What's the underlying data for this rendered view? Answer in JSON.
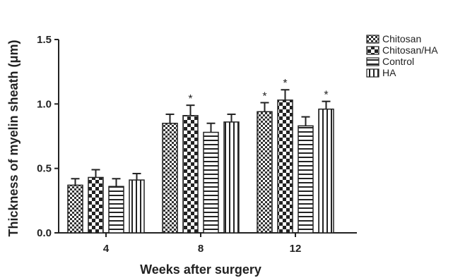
{
  "chart_data": {
    "type": "bar",
    "title": "",
    "xlabel": "Weeks after surgery",
    "ylabel": "Thickness of myelin sheath (μm)",
    "ylim": [
      0,
      1.5
    ],
    "yticks": [
      "0.0",
      "0.5",
      "1.0",
      "1.5"
    ],
    "categories": [
      "4",
      "8",
      "12"
    ],
    "series": [
      {
        "name": "Chitosan",
        "pattern": "checker",
        "values": [
          0.37,
          0.85,
          0.94
        ],
        "errors": [
          0.05,
          0.07,
          0.07
        ],
        "marks": [
          "",
          "",
          "*"
        ]
      },
      {
        "name": "Chitosan/HA",
        "pattern": "big-checker",
        "values": [
          0.43,
          0.91,
          1.03
        ],
        "errors": [
          0.06,
          0.08,
          0.08
        ],
        "marks": [
          "",
          "*",
          "*"
        ]
      },
      {
        "name": "Control",
        "pattern": "horizontal",
        "values": [
          0.36,
          0.78,
          0.83
        ],
        "errors": [
          0.06,
          0.07,
          0.07
        ],
        "marks": [
          "",
          "",
          ""
        ]
      },
      {
        "name": "HA",
        "pattern": "vertical",
        "values": [
          0.41,
          0.86,
          0.96
        ],
        "errors": [
          0.05,
          0.06,
          0.06
        ],
        "marks": [
          "",
          "",
          "*"
        ]
      }
    ],
    "legend_position": "top-right",
    "colors": {
      "stroke": "#222222",
      "fill": "#ffffff"
    }
  }
}
